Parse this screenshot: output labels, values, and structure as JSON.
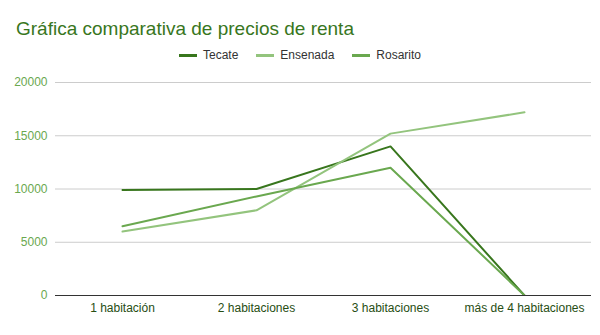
{
  "chart_data": {
    "type": "line",
    "title": "Gráfica comparativa de precios de renta",
    "categories": [
      "1 habitación",
      "2 habitaciones",
      "3 habitaciones",
      "más de 4 habitaciones"
    ],
    "series": [
      {
        "name": "Tecate",
        "color": "#38761d",
        "values": [
          9900,
          10000,
          14000,
          0
        ]
      },
      {
        "name": "Ensenada",
        "color": "#93c47d",
        "values": [
          6000,
          8000,
          15200,
          17200
        ]
      },
      {
        "name": "Rosarito",
        "color": "#6aa84f",
        "values": [
          6500,
          9300,
          12000,
          0
        ]
      }
    ],
    "ylim": [
      0,
      20000
    ],
    "yticks": [
      0,
      5000,
      10000,
      15000,
      20000
    ],
    "grid": true,
    "legend": "top"
  }
}
